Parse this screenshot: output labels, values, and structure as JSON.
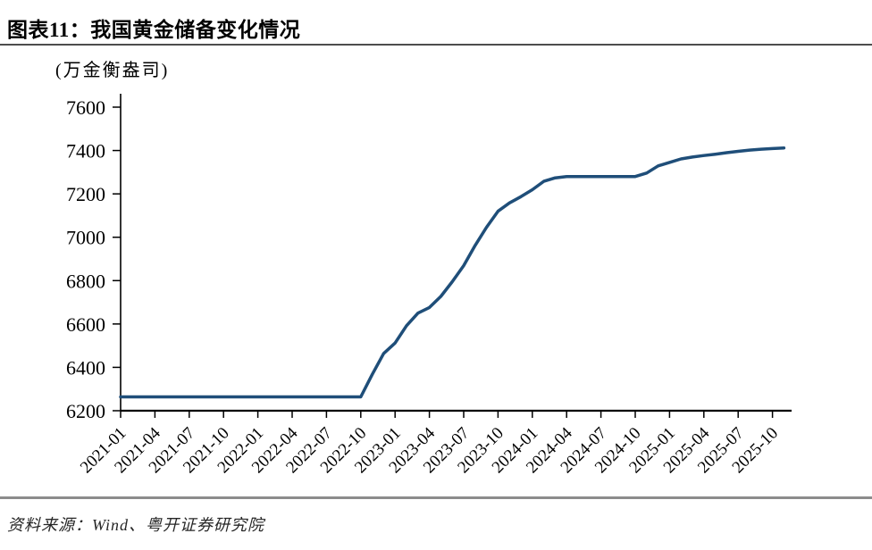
{
  "figure": {
    "title": "图表11：我国黄金储备变化情况",
    "unit_label": "(万金衡盎司)",
    "source": "资料来源：Wind、粤开证券研究院"
  },
  "chart_data": {
    "type": "line",
    "title": "我国黄金储备变化情况",
    "xlabel": "",
    "ylabel": "万金衡盎司",
    "ylim": [
      6200,
      7600
    ],
    "yticks": [
      6200,
      6400,
      6600,
      6800,
      7000,
      7200,
      7400,
      7600
    ],
    "grid": false,
    "legend_position": "none",
    "line_color": "#1f4e79",
    "xtick_labels": [
      "2021-01",
      "2021-04",
      "2021-07",
      "2021-10",
      "2022-01",
      "2022-04",
      "2022-07",
      "2022-10",
      "2023-01",
      "2023-04",
      "2023-07",
      "2023-10",
      "2024-01",
      "2024-04",
      "2024-07",
      "2024-10",
      "2025-01",
      "2025-04",
      "2025-07",
      "2025-10"
    ],
    "x": [
      "2021-01",
      "2021-02",
      "2021-03",
      "2021-04",
      "2021-05",
      "2021-06",
      "2021-07",
      "2021-08",
      "2021-09",
      "2021-10",
      "2021-11",
      "2021-12",
      "2022-01",
      "2022-02",
      "2022-03",
      "2022-04",
      "2022-05",
      "2022-06",
      "2022-07",
      "2022-08",
      "2022-09",
      "2022-10",
      "2022-11",
      "2022-12",
      "2023-01",
      "2023-02",
      "2023-03",
      "2023-04",
      "2023-05",
      "2023-06",
      "2023-07",
      "2023-08",
      "2023-09",
      "2023-10",
      "2023-11",
      "2023-12",
      "2024-01",
      "2024-02",
      "2024-03",
      "2024-04",
      "2024-05",
      "2024-06",
      "2024-07",
      "2024-08",
      "2024-09",
      "2024-10",
      "2024-11",
      "2024-12",
      "2025-01",
      "2025-02",
      "2025-03",
      "2025-04",
      "2025-05",
      "2025-06",
      "2025-07",
      "2025-08",
      "2025-09",
      "2025-10",
      "2025-11"
    ],
    "series": [
      {
        "name": "我国黄金储备",
        "values": [
          6264,
          6264,
          6264,
          6264,
          6264,
          6264,
          6264,
          6264,
          6264,
          6264,
          6264,
          6264,
          6264,
          6264,
          6264,
          6264,
          6264,
          6264,
          6264,
          6264,
          6264,
          6264,
          6367,
          6464,
          6512,
          6592,
          6650,
          6676,
          6727,
          6795,
          6869,
          6962,
          7046,
          7120,
          7158,
          7187,
          7219,
          7258,
          7274,
          7280,
          7280,
          7280,
          7280,
          7280,
          7280,
          7280,
          7296,
          7329,
          7345,
          7361,
          7370,
          7377,
          7383,
          7390,
          7396,
          7402,
          7406,
          7409,
          7412
        ]
      }
    ]
  }
}
